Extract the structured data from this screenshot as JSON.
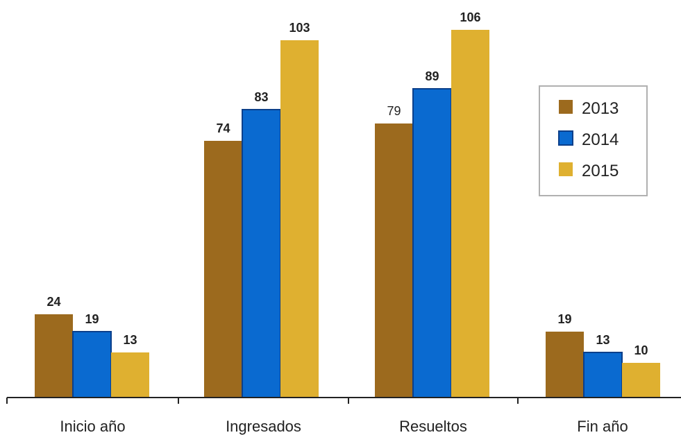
{
  "chart_data": {
    "type": "bar",
    "categories": [
      "Inicio año",
      "Ingresados",
      "Resueltos",
      "Fin año"
    ],
    "series": [
      {
        "name": "2013",
        "color": "#9c6a1e",
        "values": [
          24,
          74,
          79,
          19
        ],
        "label_bold": [
          true,
          true,
          false,
          true
        ]
      },
      {
        "name": "2014",
        "color": "#0a6ad0",
        "values": [
          19,
          83,
          89,
          13
        ],
        "label_bold": [
          true,
          true,
          true,
          true
        ]
      },
      {
        "name": "2015",
        "color": "#dfb030",
        "values": [
          13,
          103,
          106,
          10
        ],
        "label_bold": [
          true,
          true,
          true,
          true
        ]
      }
    ],
    "ylim": [
      0,
      106
    ],
    "grid": false,
    "legend_position": "right"
  }
}
